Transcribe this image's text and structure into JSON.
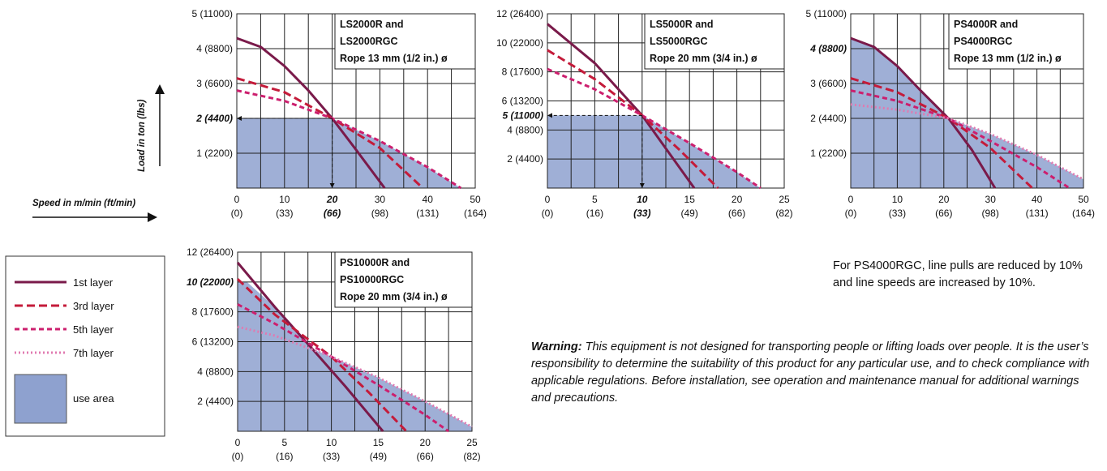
{
  "axis_labels": {
    "speed": "Speed in m/min (ft/min)",
    "load": "Load in ton (lbs)"
  },
  "legend": {
    "items": [
      {
        "label": "1st layer",
        "color": "#7a1a4a",
        "dash": "solid"
      },
      {
        "label": "3rd layer",
        "color": "#c41b3a",
        "dash": "dash"
      },
      {
        "label": "5th layer",
        "color": "#cc1f6e",
        "dash": "short-dash"
      },
      {
        "label": "7th layer",
        "color": "#e07ab0",
        "dash": "dot"
      }
    ],
    "use_area_label": "use area",
    "use_area_color": "#8ea1cf"
  },
  "note": "For PS4000RGC, line pulls are reduced by 10% and line speeds are increased by 10%.",
  "warning": {
    "bold": "Warning:",
    "text": " This equipment is not designed for transporting people or lifting loads over people. It is the user’s responsibility to determine the suitability of this product for any particular use, and to check compliance with applicable regulations. Before installation, see operation and maintenance manual for additional warnings and precautions."
  },
  "chart_data": [
    {
      "type": "line",
      "title": [
        "LS2000R and",
        "LS2000RGC",
        "Rope 13 mm (1/2 in.) ø"
      ],
      "x_ticks": [
        "0",
        "10",
        "20",
        "30",
        "40",
        "50"
      ],
      "x_ticks_ft": [
        "(0)",
        "(33)",
        "(66)",
        "(98)",
        "(131)",
        "(164)"
      ],
      "y_ticks": [
        "1 (2200)",
        "2 (4400)",
        "3 (6600)",
        "4 (8800)",
        "5 (11000)"
      ],
      "xlim": [
        0,
        50
      ],
      "ylim": [
        0,
        5
      ],
      "highlight": {
        "x": 20,
        "y": 2,
        "x_label": "20",
        "x_label_ft": "(66)",
        "y_label": "2 (4400)"
      },
      "series": [
        {
          "name": "1st layer",
          "x": [
            0,
            5,
            10,
            15,
            20,
            25,
            31
          ],
          "y": [
            4.3,
            4.05,
            3.5,
            2.8,
            2.0,
            1.1,
            0
          ]
        },
        {
          "name": "3rd layer",
          "x": [
            0,
            10,
            20,
            30,
            39
          ],
          "y": [
            3.15,
            2.75,
            2.0,
            1.15,
            0
          ]
        },
        {
          "name": "5th layer",
          "x": [
            0,
            10,
            20,
            30,
            40,
            47
          ],
          "y": [
            2.8,
            2.5,
            2.0,
            1.35,
            0.6,
            0
          ]
        }
      ],
      "use_area": {
        "x": [
          0,
          20,
          30,
          40,
          47
        ],
        "y": [
          2.0,
          2.0,
          1.35,
          0.6,
          0
        ]
      }
    },
    {
      "type": "line",
      "title": [
        "LS5000R and",
        "LS5000RGC",
        "Rope 20 mm (3/4 in.) ø"
      ],
      "x_ticks": [
        "0",
        "5",
        "10",
        "15",
        "20",
        "25"
      ],
      "x_ticks_ft": [
        "(0)",
        "(16)",
        "(33)",
        "(49)",
        "(66)",
        "(82)"
      ],
      "y_ticks": [
        "2 (4400)",
        "4 (8800)",
        "6 (13200)",
        "8 (17600)",
        "10 (22000)",
        "12 (26400)"
      ],
      "xlim": [
        0,
        25
      ],
      "ylim": [
        0,
        12
      ],
      "highlight": {
        "x": 10,
        "y": 5,
        "x_label": "10",
        "x_label_ft": "(33)",
        "y_label": "5 (11000)"
      },
      "series": [
        {
          "name": "1st layer",
          "x": [
            0,
            5,
            10,
            15.5
          ],
          "y": [
            11.3,
            8.6,
            5.0,
            0
          ]
        },
        {
          "name": "3rd layer",
          "x": [
            0,
            5,
            10,
            14,
            18
          ],
          "y": [
            9.5,
            7.5,
            5.0,
            2.6,
            0
          ]
        },
        {
          "name": "5th layer",
          "x": [
            0,
            5,
            10,
            15,
            20,
            22.5
          ],
          "y": [
            8.2,
            6.8,
            5.0,
            3.1,
            1.1,
            0
          ]
        }
      ],
      "use_area": {
        "x": [
          0,
          10,
          15,
          20,
          22.5
        ],
        "y": [
          5.0,
          5.0,
          3.1,
          1.1,
          0
        ]
      }
    },
    {
      "type": "line",
      "title": [
        "PS4000R and",
        "PS4000RGC",
        "Rope 13 mm (1/2 in.) ø"
      ],
      "x_ticks": [
        "0",
        "10",
        "20",
        "30",
        "40",
        "50"
      ],
      "x_ticks_ft": [
        "(0)",
        "(33)",
        "(66)",
        "(98)",
        "(131)",
        "(164)"
      ],
      "y_ticks": [
        "1 (2200)",
        "2 (4400)",
        "3 (6600)",
        "4 (8800)",
        "5 (11000)"
      ],
      "xlim": [
        0,
        50
      ],
      "ylim": [
        0,
        5
      ],
      "highlight": {
        "y": 4,
        "y_label": "4 (8800)"
      },
      "series": [
        {
          "name": "1st layer",
          "x": [
            0,
            5,
            10,
            15,
            21,
            26,
            31
          ],
          "y": [
            4.3,
            4.05,
            3.5,
            2.8,
            2.0,
            1.1,
            0
          ]
        },
        {
          "name": "3rd layer",
          "x": [
            0,
            10,
            21,
            30,
            39
          ],
          "y": [
            3.15,
            2.75,
            2.0,
            1.15,
            0
          ]
        },
        {
          "name": "5th layer",
          "x": [
            0,
            10,
            21,
            30,
            40,
            47
          ],
          "y": [
            2.8,
            2.5,
            2.0,
            1.35,
            0.6,
            0
          ]
        },
        {
          "name": "7th layer",
          "x": [
            0,
            10,
            21,
            30,
            40,
            50
          ],
          "y": [
            2.4,
            2.25,
            2.0,
            1.55,
            0.95,
            0.25
          ]
        }
      ],
      "use_area": {
        "x": [
          0,
          5,
          10,
          15,
          21,
          30,
          40,
          50,
          50
        ],
        "y": [
          4.3,
          4.05,
          3.5,
          2.8,
          2.0,
          1.55,
          0.95,
          0.25,
          0
        ]
      }
    },
    {
      "type": "line",
      "title": [
        "PS10000R and",
        "PS10000RGC",
        "Rope 20 mm (3/4 in.) ø"
      ],
      "x_ticks": [
        "0",
        "5",
        "10",
        "15",
        "20",
        "25"
      ],
      "x_ticks_ft": [
        "(0)",
        "(16)",
        "(33)",
        "(49)",
        "(66)",
        "(82)"
      ],
      "y_ticks": [
        "2 (4400)",
        "4 (8800)",
        "6 (13200)",
        "8 (17600)",
        "10 (22000)",
        "12 (26400)"
      ],
      "xlim": [
        0,
        25
      ],
      "ylim": [
        0,
        12
      ],
      "highlight": {
        "y": 10,
        "y_label": "10 (22000)"
      },
      "series": [
        {
          "name": "1st layer",
          "x": [
            0,
            4,
            8,
            11.5,
            15.5
          ],
          "y": [
            11.3,
            8.3,
            5.5,
            3.0,
            0
          ]
        },
        {
          "name": "3rd layer",
          "x": [
            0,
            4,
            10,
            14,
            18
          ],
          "y": [
            10.2,
            7.8,
            5.0,
            2.6,
            0
          ]
        },
        {
          "name": "5th layer",
          "x": [
            0,
            4,
            10,
            15,
            20,
            22.5
          ],
          "y": [
            8.5,
            7.2,
            5.0,
            3.1,
            1.1,
            0
          ]
        },
        {
          "name": "7th layer",
          "x": [
            0,
            4,
            10,
            15,
            20,
            25
          ],
          "y": [
            7.0,
            6.4,
            5.0,
            3.6,
            2.0,
            0.3
          ]
        }
      ],
      "use_area": {
        "x": [
          0,
          1.0,
          4,
          8,
          10,
          15,
          20,
          25,
          25
        ],
        "y": [
          10.0,
          10.0,
          8.3,
          5.5,
          5.0,
          3.6,
          2.0,
          0.3,
          0
        ]
      }
    }
  ]
}
